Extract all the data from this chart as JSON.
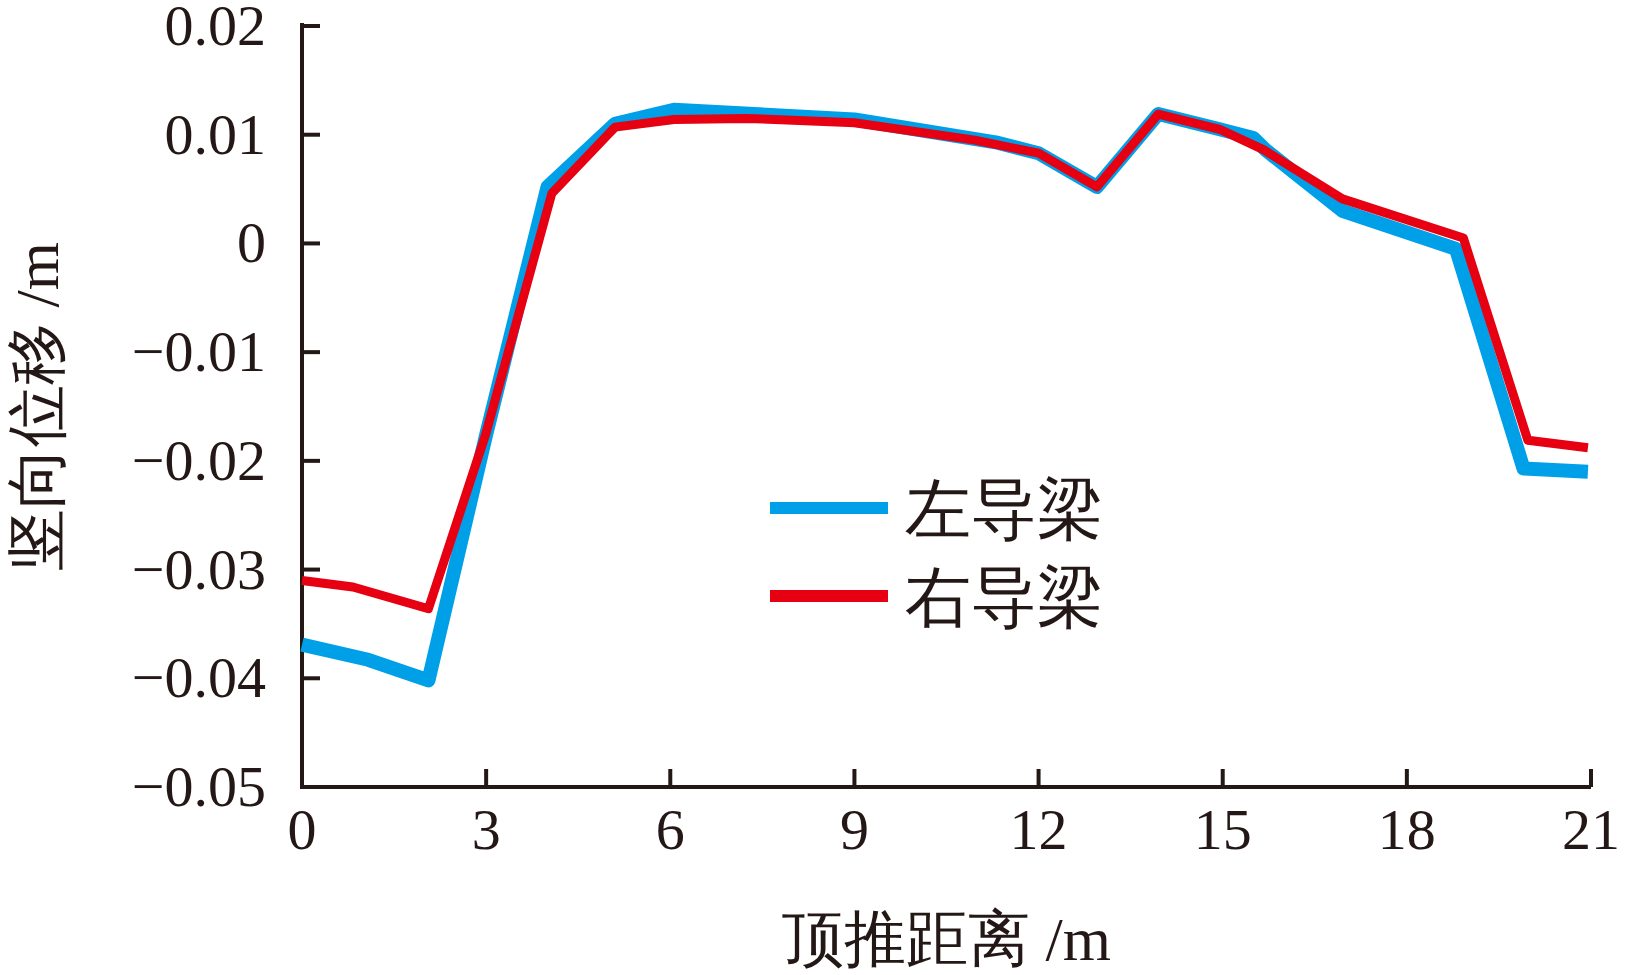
{
  "chart_data": {
    "type": "line",
    "xlabel": "顶推距离 /m",
    "ylabel": "竖向位移 /m",
    "xlim": [
      0,
      21
    ],
    "xticks": [
      0,
      3,
      6,
      9,
      12,
      15,
      18,
      21
    ],
    "ylim": [
      -0.05,
      0.02
    ],
    "yticks": [
      {
        "value": 0.02,
        "label": "0.02"
      },
      {
        "value": 0.01,
        "label": "0.01"
      },
      0,
      {
        "value": -0.01,
        "label": "−0.01"
      },
      {
        "value": -0.02,
        "label": "−0.02"
      },
      {
        "value": -0.03,
        "label": "−0.03"
      },
      {
        "value": -0.04,
        "label": "−0.04"
      },
      {
        "value": -0.05,
        "label": "−0.05"
      }
    ],
    "grid": false,
    "legend": "center",
    "marker": "none",
    "line_style": "solid",
    "series": [
      {
        "name": "左导梁",
        "color": "#00a0e9",
        "x": [
          0,
          1.08,
          2.06,
          3,
          4,
          5.1,
          6.06,
          9,
          11.3,
          12,
          12.95,
          13.95,
          14.95,
          15.5,
          15.7,
          16.95,
          18.8,
          19.9,
          20.95
        ],
        "values": [
          -0.0369,
          -0.0383,
          -0.0402,
          -0.0176,
          0.0052,
          0.011,
          0.0123,
          0.0114,
          0.0093,
          0.0083,
          0.0052,
          0.0119,
          0.0105,
          0.0097,
          0.0086,
          0.003,
          -0.0005,
          -0.0207,
          -0.021
        ]
      },
      {
        "name": "右导梁",
        "color": "#e60012",
        "x": [
          0,
          0.83,
          2.06,
          2.99,
          4.07,
          5.1,
          6.06,
          7.24,
          9,
          10.96,
          12,
          12.95,
          13.95,
          14.95,
          15.67,
          16.95,
          18.92,
          19.97,
          20.95
        ],
        "values": [
          -0.031,
          -0.0316,
          -0.0336,
          -0.0176,
          0.0046,
          0.0107,
          0.0114,
          0.0115,
          0.0111,
          0.0095,
          0.0083,
          0.0052,
          0.0119,
          0.0105,
          0.0086,
          0.0041,
          0.0005,
          -0.0181,
          -0.0188
        ]
      }
    ]
  }
}
